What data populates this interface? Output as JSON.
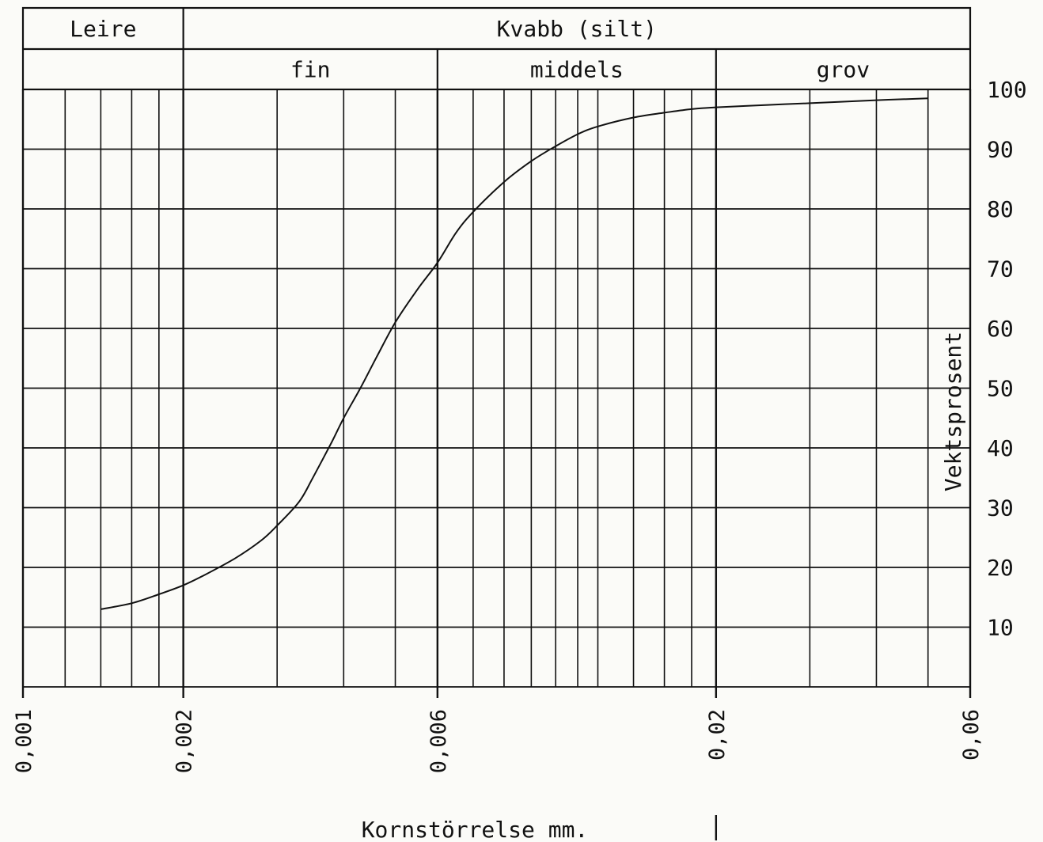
{
  "chart_data": {
    "type": "line",
    "title": "",
    "xlabel": "Kornstörrelse mm.",
    "ylabel": "Vektsprosent",
    "x_scale": "log",
    "xlim": [
      0.001,
      0.06
    ],
    "ylim": [
      0,
      100
    ],
    "grid": true,
    "x_ticks": [
      {
        "value": 0.001,
        "label": "0,001"
      },
      {
        "value": 0.002,
        "label": "0,002"
      },
      {
        "value": 0.006,
        "label": "0,006"
      },
      {
        "value": 0.02,
        "label": "0,02"
      },
      {
        "value": 0.06,
        "label": "0,06"
      }
    ],
    "y_ticks": [
      {
        "value": 10,
        "label": "10"
      },
      {
        "value": 20,
        "label": "20"
      },
      {
        "value": 30,
        "label": "30"
      },
      {
        "value": 40,
        "label": "40"
      },
      {
        "value": 50,
        "label": "50"
      },
      {
        "value": 60,
        "label": "60"
      },
      {
        "value": 70,
        "label": "70"
      },
      {
        "value": 80,
        "label": "80"
      },
      {
        "value": 90,
        "label": "90"
      },
      {
        "value": 100,
        "label": "100"
      }
    ],
    "x_minor_gridlines": [
      0.0012,
      0.0014,
      0.0016,
      0.0018,
      0.003,
      0.004,
      0.005,
      0.007,
      0.008,
      0.009,
      0.01,
      0.011,
      0.012,
      0.014,
      0.016,
      0.018,
      0.03,
      0.04,
      0.05
    ],
    "fraction_bands": {
      "top": [
        {
          "label": "Leire",
          "from": 0.001,
          "to": 0.002
        },
        {
          "label": "Kvabb (silt)",
          "from": 0.002,
          "to": 0.06
        }
      ],
      "sub": [
        {
          "label": "",
          "from": 0.001,
          "to": 0.002
        },
        {
          "label": "fin",
          "from": 0.002,
          "to": 0.006
        },
        {
          "label": "middels",
          "from": 0.006,
          "to": 0.02
        },
        {
          "label": "grov",
          "from": 0.02,
          "to": 0.06
        }
      ]
    },
    "series": [
      {
        "x": [
          0.0014,
          0.0016,
          0.0018,
          0.002,
          0.0022,
          0.0025,
          0.0028,
          0.003,
          0.0033,
          0.0035,
          0.0038,
          0.004,
          0.0043,
          0.0046,
          0.005,
          0.0055,
          0.006,
          0.0065,
          0.007,
          0.008,
          0.009,
          0.01,
          0.011,
          0.012,
          0.014,
          0.016,
          0.018,
          0.02,
          0.025,
          0.03,
          0.04,
          0.05
        ],
        "y": [
          13,
          14,
          15.5,
          17,
          18.8,
          21.5,
          24.5,
          27,
          31,
          35,
          41,
          45,
          50,
          55,
          61,
          66.5,
          71,
          76,
          79.5,
          84.5,
          88,
          90.5,
          92.5,
          93.8,
          95.3,
          96.1,
          96.7,
          97,
          97.4,
          97.7,
          98.2,
          98.5
        ]
      }
    ]
  }
}
